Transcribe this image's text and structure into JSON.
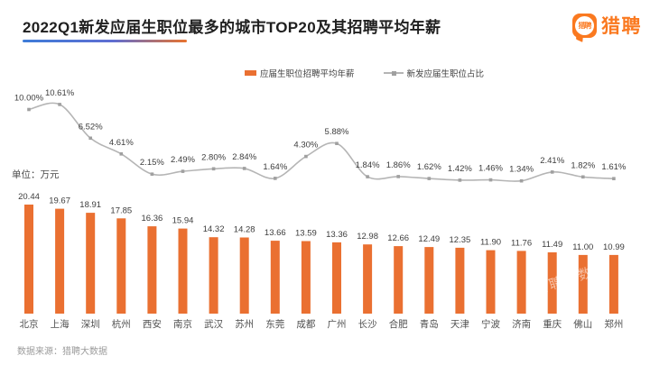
{
  "title": "2022Q1新发应届生职位最多的城市TOP20及其招聘平均年薪",
  "logo": {
    "bubble_text": "猎聘",
    "brand_text": "猎聘"
  },
  "legend": {
    "bar_label": "应届生职位招聘平均年薪",
    "line_label": "新发应届生职位占比"
  },
  "unit_label": "单位：万元",
  "source_label": "数据来源：猎聘大数据",
  "watermark": "猎聘大数据",
  "colors": {
    "bar": "#EA7031",
    "line": "#B5B5B5",
    "marker": "#A0A0A0",
    "brand": "#FA7920",
    "underline_from": "#3E7CD8",
    "underline_mid": "#5F6ED2",
    "underline_to": "#E8722E"
  },
  "chart_data": {
    "type": "bar",
    "title": "2022Q1新发应届生职位最多的城市TOP20及其招聘平均年薪",
    "categories": [
      "北京",
      "上海",
      "深圳",
      "杭州",
      "西安",
      "南京",
      "武汉",
      "苏州",
      "东莞",
      "成都",
      "广州",
      "长沙",
      "合肥",
      "青岛",
      "天津",
      "宁波",
      "济南",
      "重庆",
      "佛山",
      "郑州"
    ],
    "series": [
      {
        "name": "应届生职位招聘平均年薪",
        "type": "bar",
        "unit": "万元",
        "values": [
          20.44,
          19.67,
          18.91,
          17.85,
          16.36,
          15.94,
          14.32,
          14.28,
          13.66,
          13.59,
          13.36,
          12.98,
          12.66,
          12.49,
          12.35,
          11.9,
          11.76,
          11.49,
          11.0,
          10.99
        ]
      },
      {
        "name": "新发应届生职位占比",
        "type": "line",
        "unit": "%",
        "values": [
          10.0,
          10.61,
          6.52,
          4.61,
          2.15,
          2.49,
          2.8,
          2.84,
          1.64,
          4.3,
          5.88,
          1.84,
          1.86,
          1.62,
          1.42,
          1.46,
          1.34,
          2.41,
          1.82,
          1.61
        ]
      }
    ],
    "legend_position": "top",
    "grid": false,
    "data_labels": true,
    "xlabel": "",
    "ylabel": "单位：万元"
  }
}
